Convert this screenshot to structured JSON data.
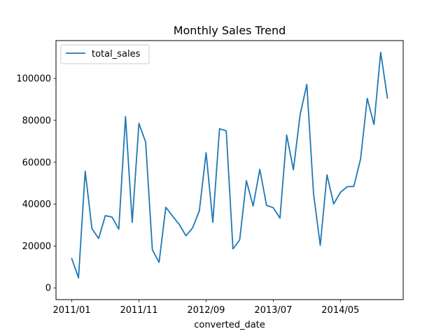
{
  "chart_data": {
    "type": "line",
    "title": "Monthly Sales Trend",
    "xlabel": "converted_date",
    "ylabel": "",
    "x_tick_labels": [
      "2011/01",
      "2011/11",
      "2012/09",
      "2013/07",
      "2014/05"
    ],
    "x_tick_indices": [
      0,
      10,
      20,
      30,
      40
    ],
    "y_ticks": [
      0,
      20000,
      40000,
      60000,
      80000,
      100000
    ],
    "ylim": [
      -5600,
      118100
    ],
    "grid": false,
    "legend": "top-left",
    "series": [
      {
        "name": "total_sales",
        "color": "#1f77b4",
        "x": [
          "2011/01",
          "2011/02",
          "2011/03",
          "2011/04",
          "2011/05",
          "2011/06",
          "2011/07",
          "2011/08",
          "2011/09",
          "2011/10",
          "2011/11",
          "2011/12",
          "2012/01",
          "2012/02",
          "2012/03",
          "2012/04",
          "2012/05",
          "2012/06",
          "2012/07",
          "2012/08",
          "2012/09",
          "2012/10",
          "2012/11",
          "2012/12",
          "2013/01",
          "2013/02",
          "2013/03",
          "2013/04",
          "2013/05",
          "2013/06",
          "2013/07",
          "2013/08",
          "2013/09",
          "2013/10",
          "2013/11",
          "2013/12",
          "2014/01",
          "2014/02",
          "2014/03",
          "2014/04",
          "2014/05",
          "2014/06",
          "2014/07",
          "2014/08",
          "2014/09",
          "2014/10",
          "2014/11",
          "2014/12"
        ],
        "values": [
          14000,
          4800,
          55700,
          28300,
          23600,
          34500,
          33800,
          28000,
          81800,
          31300,
          78600,
          69600,
          18200,
          12200,
          38500,
          34300,
          30300,
          24900,
          28700,
          36900,
          64600,
          31300,
          76000,
          75000,
          18600,
          22900,
          51200,
          39100,
          56600,
          39400,
          38300,
          33300,
          73000,
          56400,
          82700,
          97200,
          45000,
          20300,
          54000,
          40100,
          45600,
          48300,
          48500,
          61500,
          90500,
          78000,
          112500,
          90700
        ]
      }
    ]
  }
}
